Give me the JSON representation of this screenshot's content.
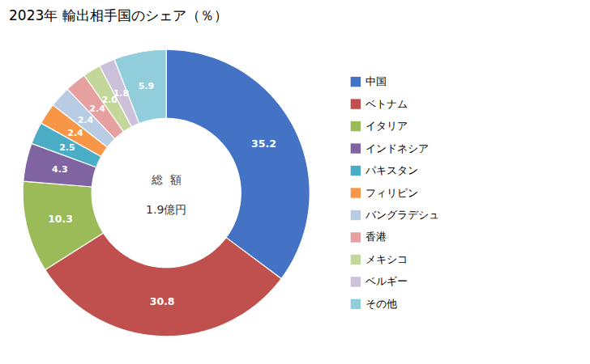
{
  "chart_data": {
    "type": "donut",
    "title": "2023年 輸出相手国のシェア（％）",
    "annotations": [
      "総  額",
      "1.9億円"
    ],
    "categories": [
      "中国",
      "ベトナム",
      "イタリア",
      "インドネシア",
      "パキスタン",
      "フィリピン",
      "バングラデシュ",
      "香港",
      "メキシコ",
      "ベルギー",
      "その他"
    ],
    "values": [
      35.2,
      30.8,
      10.3,
      4.3,
      2.5,
      2.4,
      2.4,
      2.4,
      2.0,
      1.8,
      5.9
    ],
    "value_labels": [
      "35.2",
      "30.8",
      "10.3",
      "4.3",
      "2.5",
      "2.4",
      "2.4",
      "2.4",
      "2.0",
      "1.8",
      "5.9"
    ],
    "colors": [
      "#4472C4",
      "#C0504D",
      "#9BBB59",
      "#8064A2",
      "#4BACC6",
      "#F79646",
      "#B8CCE4",
      "#E6A0A0",
      "#C4D79B",
      "#CCC0DA",
      "#92CDDC"
    ],
    "data_labels": true,
    "legend": "right"
  }
}
